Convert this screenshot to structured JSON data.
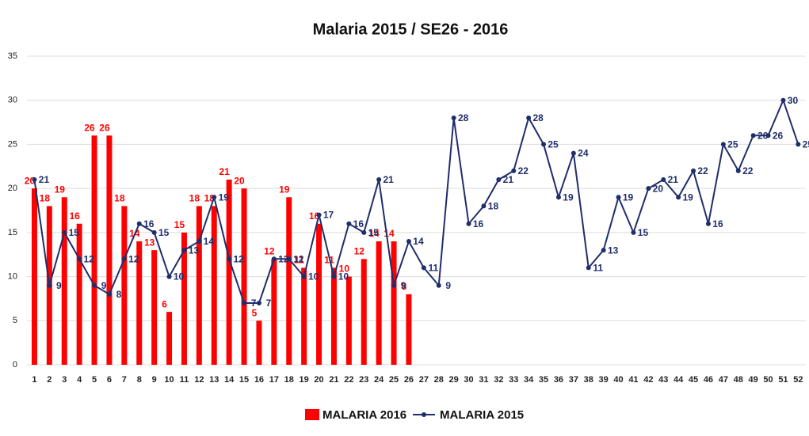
{
  "chart_data": {
    "type": "combo",
    "title": "Malaria  2015 / SE26 - 2016",
    "categories": [
      "1",
      "2",
      "3",
      "4",
      "5",
      "6",
      "7",
      "8",
      "9",
      "10",
      "11",
      "12",
      "13",
      "14",
      "15",
      "16",
      "17",
      "18",
      "19",
      "20",
      "21",
      "22",
      "23",
      "24",
      "25",
      "26",
      "27",
      "28",
      "29",
      "30",
      "31",
      "32",
      "33",
      "34",
      "35",
      "36",
      "37",
      "38",
      "39",
      "40",
      "41",
      "42",
      "43",
      "44",
      "45",
      "46",
      "47",
      "48",
      "49",
      "50",
      "51",
      "52"
    ],
    "series": [
      {
        "name": "MALARIA 2016",
        "type": "bar",
        "color": "#ff0000",
        "values": [
          20,
          18,
          19,
          16,
          26,
          26,
          18,
          14,
          13,
          6,
          15,
          18,
          18,
          21,
          20,
          5,
          12,
          19,
          11,
          16,
          11,
          10,
          12,
          14,
          14,
          8,
          null,
          null,
          null,
          null,
          null,
          null,
          null,
          null,
          null,
          null,
          null,
          null,
          null,
          null,
          null,
          null,
          null,
          null,
          null,
          null,
          null,
          null,
          null,
          null,
          null,
          null
        ]
      },
      {
        "name": "MALARIA 2015",
        "type": "line",
        "color": "#1f2d6b",
        "values": [
          21,
          9,
          15,
          12,
          9,
          8,
          12,
          16,
          15,
          10,
          13,
          14,
          19,
          12,
          7,
          7,
          12,
          12,
          10,
          17,
          10,
          16,
          15,
          21,
          9,
          14,
          11,
          9,
          28,
          16,
          18,
          21,
          22,
          28,
          25,
          19,
          24,
          11,
          13,
          19,
          15,
          20,
          21,
          19,
          22,
          16,
          25,
          22,
          26,
          26,
          30,
          25
        ]
      }
    ],
    "ylim": [
      0,
      35
    ],
    "yticks": [
      0,
      5,
      10,
      15,
      20,
      25,
      30,
      35
    ],
    "grid": true,
    "legend": "bottom"
  }
}
